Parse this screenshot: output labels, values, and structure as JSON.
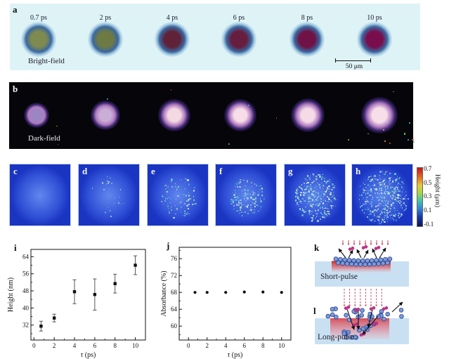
{
  "figure": {
    "panels": {
      "a": {
        "label": "a",
        "caption": "Bright-field",
        "time_labels": [
          "0.7 ps",
          "2 ps",
          "4 ps",
          "6 ps",
          "8 ps",
          "10 ps"
        ],
        "scale_bar_label": "50 μm",
        "background": "#def3f6",
        "spot_core_colors": [
          "#7e8a4f",
          "#6d7a44",
          "#5f2239",
          "#661d3e",
          "#6f1245",
          "#7a0d4c"
        ],
        "halo_color": "#3a679f"
      },
      "b": {
        "label": "b",
        "caption": "Dark-field",
        "background": "#060509",
        "spot_core_colors": [
          "#9a86c2",
          "#c9aed6",
          "#f2d9e2",
          "#f6dde6",
          "#f4dbe6",
          "#f7dfe9"
        ],
        "spot_sizes": [
          36,
          42,
          46,
          46,
          48,
          52
        ]
      },
      "height_maps": {
        "labels": [
          "c",
          "d",
          "e",
          "f",
          "g",
          "h"
        ],
        "base_color": "#1a35c2",
        "speckle_counts": [
          0,
          22,
          95,
          140,
          320,
          400
        ],
        "colorbar": {
          "ticks": [
            "0.7",
            "0.5",
            "0.3",
            "0.1",
            "-0.1"
          ],
          "label": "Height (μm)"
        }
      },
      "k": {
        "label": "k",
        "caption": "Short-pulse"
      },
      "l": {
        "label": "l",
        "caption": "Long-pulse"
      }
    }
  },
  "chart_data": [
    {
      "type": "scatter",
      "panel": "i",
      "title": "",
      "xlabel": "τ (ps)",
      "ylabel": "Height (nm)",
      "xlim": [
        -0.3,
        11
      ],
      "ylim": [
        25,
        67.4
      ],
      "xticks": [
        0,
        2,
        4,
        6,
        8,
        10
      ],
      "yticks": [
        32,
        40,
        48,
        56,
        64
      ],
      "marker": "square",
      "x": [
        0.7,
        2,
        4,
        6,
        8,
        10
      ],
      "y": [
        31.5,
        35.3,
        47.6,
        46.3,
        51.4,
        60.0
      ],
      "yerr": [
        2.3,
        1.8,
        5.6,
        7.3,
        4.4,
        4.4
      ],
      "grid": false,
      "legend": null
    },
    {
      "type": "scatter",
      "panel": "j",
      "title": "",
      "xlabel": "τ (ps)",
      "ylabel": "Absorbance (%)",
      "xlim": [
        -1,
        11
      ],
      "ylim": [
        56.7,
        78.7
      ],
      "xticks": [
        0,
        2,
        4,
        6,
        8,
        10
      ],
      "yticks": [
        60,
        64,
        68,
        72,
        76
      ],
      "marker": "circle",
      "x": [
        0.7,
        2,
        4,
        6,
        8,
        10
      ],
      "y": [
        68,
        68,
        68,
        68.1,
        68.1,
        68
      ],
      "yerr": [
        0,
        0,
        0,
        0,
        0,
        0
      ],
      "grid": false,
      "legend": null
    }
  ]
}
